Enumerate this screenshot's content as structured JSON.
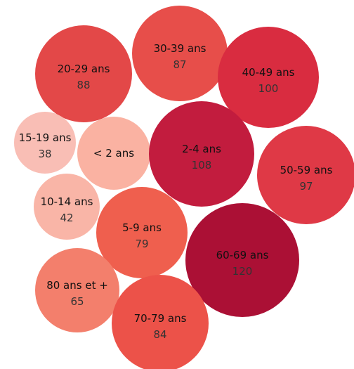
{
  "chart_data": {
    "type": "bubble",
    "title": "",
    "legend": "none",
    "color_scale": [
      "#f8c6bd",
      "#ab1035"
    ],
    "categories": [
      "20-29 ans",
      "30-39 ans",
      "40-49 ans",
      "15-19 ans",
      "< 2 ans",
      "2-4 ans",
      "50-59 ans",
      "10-14 ans",
      "5-9 ans",
      "60-69 ans",
      "80 ans et +",
      "70-79 ans"
    ],
    "values": [
      88,
      87,
      100,
      38,
      null,
      108,
      97,
      42,
      79,
      120,
      65,
      84
    ],
    "value_labels": [
      "88",
      "87",
      "100",
      "38",
      "",
      "108",
      "97",
      "42",
      "79",
      "120",
      "65",
      "84"
    ],
    "colors": [
      "#e34848",
      "#e74e4a",
      "#d92c40",
      "#f9beb5",
      "#fab2a2",
      "#c21c3e",
      "#df3946",
      "#f9b5a7",
      "#ef5f4e",
      "#ab1035",
      "#f37f6c",
      "#ec5249"
    ]
  }
}
